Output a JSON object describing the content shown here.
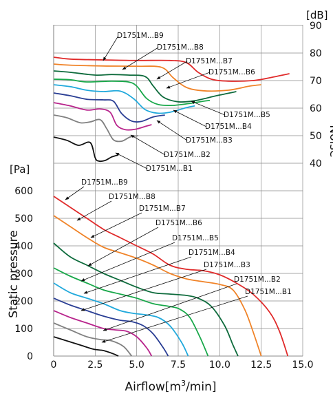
{
  "chart_data": {
    "type": "line",
    "x_axis": {
      "title": "Airflow[m³/min]",
      "title_main": "Airflow[m",
      "title_sup": "3",
      "title_end": "/min]",
      "range": [
        0,
        15
      ],
      "ticks": [
        "0",
        "2.5",
        "5.0",
        "7.5",
        "10.0",
        "12.5",
        "15.0"
      ]
    },
    "pressure_axis": {
      "title": "Static pressure",
      "unit": "[Pa]",
      "range": [
        0,
        600
      ],
      "ticks": [
        "0",
        "100",
        "200",
        "300",
        "400",
        "500",
        "600"
      ]
    },
    "noise_axis": {
      "title": "Noise",
      "unit": "[dB]",
      "range": [
        40,
        90
      ],
      "ticks": [
        "40",
        "50",
        "60",
        "70",
        "80",
        "90"
      ]
    },
    "grid": true,
    "pressure_curves": [
      {
        "name": "D1751M...B9",
        "color": "#e02a2a",
        "points": [
          [
            0,
            580
          ],
          [
            1,
            540
          ],
          [
            2,
            500
          ],
          [
            3,
            460
          ],
          [
            4,
            430
          ],
          [
            5,
            400
          ],
          [
            6,
            370
          ],
          [
            7,
            330
          ],
          [
            8,
            315
          ],
          [
            9,
            310
          ],
          [
            10,
            295
          ],
          [
            11,
            265
          ],
          [
            12,
            225
          ],
          [
            13,
            160
          ],
          [
            13.6,
            90
          ],
          [
            14.1,
            0
          ]
        ]
      },
      {
        "name": "D1751M...B8",
        "color": "#f08328",
        "points": [
          [
            0,
            510
          ],
          [
            1,
            470
          ],
          [
            2,
            430
          ],
          [
            3,
            395
          ],
          [
            4,
            375
          ],
          [
            5,
            355
          ],
          [
            6,
            330
          ],
          [
            7,
            300
          ],
          [
            8,
            280
          ],
          [
            9,
            270
          ],
          [
            10,
            260
          ],
          [
            10.8,
            240
          ],
          [
            11.5,
            170
          ],
          [
            12,
            90
          ],
          [
            12.5,
            0
          ]
        ]
      },
      {
        "name": "D1751M...B7",
        "color": "#0e6b3c",
        "points": [
          [
            0,
            410
          ],
          [
            1,
            360
          ],
          [
            2,
            330
          ],
          [
            3,
            300
          ],
          [
            4,
            275
          ],
          [
            5,
            250
          ],
          [
            6,
            230
          ],
          [
            7,
            225
          ],
          [
            8,
            220
          ],
          [
            8.7,
            210
          ],
          [
            9.5,
            180
          ],
          [
            10.3,
            110
          ],
          [
            10.8,
            40
          ],
          [
            11.1,
            0
          ]
        ]
      },
      {
        "name": "D1751M...B6",
        "color": "#19a84a",
        "points": [
          [
            0,
            320
          ],
          [
            1,
            290
          ],
          [
            2,
            265
          ],
          [
            3,
            240
          ],
          [
            4,
            225
          ],
          [
            5,
            210
          ],
          [
            6,
            190
          ],
          [
            7,
            180
          ],
          [
            7.6,
            170
          ],
          [
            8.2,
            140
          ],
          [
            8.8,
            70
          ],
          [
            9.3,
            0
          ]
        ]
      },
      {
        "name": "D1751M...B5",
        "color": "#21a9dc",
        "points": [
          [
            0,
            265
          ],
          [
            1,
            230
          ],
          [
            2,
            210
          ],
          [
            3,
            190
          ],
          [
            4,
            165
          ],
          [
            4.8,
            155
          ],
          [
            5.5,
            150
          ],
          [
            6.3,
            140
          ],
          [
            7,
            110
          ],
          [
            7.7,
            50
          ],
          [
            8.1,
            0
          ]
        ]
      },
      {
        "name": "D1751M...B4",
        "color": "#2a3e94",
        "points": [
          [
            0,
            210
          ],
          [
            1,
            185
          ],
          [
            2,
            165
          ],
          [
            3,
            145
          ],
          [
            4,
            130
          ],
          [
            4.7,
            125
          ],
          [
            5.4,
            110
          ],
          [
            6,
            80
          ],
          [
            6.6,
            30
          ],
          [
            6.9,
            0
          ]
        ]
      },
      {
        "name": "D1751M...B3",
        "color": "#b8248c",
        "points": [
          [
            0,
            165
          ],
          [
            1,
            140
          ],
          [
            2,
            120
          ],
          [
            3,
            100
          ],
          [
            3.7,
            95
          ],
          [
            4.4,
            90
          ],
          [
            5,
            70
          ],
          [
            5.6,
            30
          ],
          [
            5.9,
            0
          ]
        ]
      },
      {
        "name": "D1751M...B2",
        "color": "#808080",
        "points": [
          [
            0,
            120
          ],
          [
            1,
            95
          ],
          [
            2,
            70
          ],
          [
            2.8,
            60
          ],
          [
            3.5,
            55
          ],
          [
            4.2,
            35
          ],
          [
            4.7,
            0
          ]
        ]
      },
      {
        "name": "D1751M...B1",
        "color": "#111111",
        "points": [
          [
            0,
            70
          ],
          [
            0.8,
            55
          ],
          [
            1.6,
            40
          ],
          [
            2.4,
            25
          ],
          [
            3,
            20
          ],
          [
            3.6,
            8
          ],
          [
            3.9,
            0
          ]
        ]
      }
    ],
    "noise_curves": [
      {
        "name": "D1751M...B9",
        "color": "#e02a2a",
        "points": [
          [
            0,
            78.5
          ],
          [
            1,
            77.8
          ],
          [
            3,
            77.5
          ],
          [
            5,
            77.3
          ],
          [
            7,
            77.3
          ],
          [
            8,
            76.5
          ],
          [
            8.7,
            73
          ],
          [
            9.5,
            70.5
          ],
          [
            10.5,
            69.8
          ],
          [
            12,
            70
          ],
          [
            13,
            71
          ],
          [
            14.2,
            72.5
          ]
        ]
      },
      {
        "name": "D1751M...B8",
        "color": "#f08328",
        "points": [
          [
            0,
            76
          ],
          [
            1,
            75.6
          ],
          [
            3,
            75.3
          ],
          [
            5,
            75.2
          ],
          [
            6.5,
            74.8
          ],
          [
            7.2,
            71
          ],
          [
            8,
            67.5
          ],
          [
            9,
            66.3
          ],
          [
            10.5,
            66.5
          ],
          [
            11.8,
            68
          ],
          [
            12.5,
            68.5
          ]
        ]
      },
      {
        "name": "D1751M...B7",
        "color": "#0e6b3c",
        "points": [
          [
            0,
            73.5
          ],
          [
            1,
            73
          ],
          [
            2.5,
            72
          ],
          [
            3.5,
            72.2
          ],
          [
            4.5,
            72
          ],
          [
            5.5,
            71.5
          ],
          [
            6,
            68
          ],
          [
            6.6,
            64
          ],
          [
            7.5,
            62.3
          ],
          [
            8.5,
            62.7
          ],
          [
            9.8,
            64.5
          ],
          [
            11,
            66
          ]
        ]
      },
      {
        "name": "D1751M...B6",
        "color": "#19a84a",
        "points": [
          [
            0,
            70.5
          ],
          [
            1,
            70.3
          ],
          [
            2,
            69.5
          ],
          [
            3.5,
            69.8
          ],
          [
            4.5,
            69.5
          ],
          [
            5,
            68
          ],
          [
            5.6,
            63.5
          ],
          [
            6.3,
            61.3
          ],
          [
            7.2,
            61
          ],
          [
            8.3,
            61.8
          ],
          [
            9,
            62.5
          ],
          [
            9.4,
            62.8
          ]
        ]
      },
      {
        "name": "D1751M...B5",
        "color": "#21a9dc",
        "points": [
          [
            0,
            68.5
          ],
          [
            1,
            67.8
          ],
          [
            2,
            66.5
          ],
          [
            3,
            66
          ],
          [
            4,
            66.2
          ],
          [
            4.8,
            63.5
          ],
          [
            5.5,
            59.5
          ],
          [
            6.2,
            58.2
          ],
          [
            7,
            58.5
          ],
          [
            8,
            60.2
          ],
          [
            8.5,
            60.8
          ]
        ]
      },
      {
        "name": "D1751M...B4",
        "color": "#2a3e94",
        "points": [
          [
            0,
            65.5
          ],
          [
            1,
            64.5
          ],
          [
            2,
            63.2
          ],
          [
            3,
            63
          ],
          [
            3.6,
            62.5
          ],
          [
            4.1,
            58
          ],
          [
            4.7,
            55.3
          ],
          [
            5.3,
            55.2
          ],
          [
            6,
            56.8
          ],
          [
            6.7,
            57.5
          ]
        ]
      },
      {
        "name": "D1751M...B3",
        "color": "#b8248c",
        "points": [
          [
            0,
            62
          ],
          [
            1,
            60.8
          ],
          [
            2,
            59.3
          ],
          [
            2.8,
            59.7
          ],
          [
            3.4,
            58.5
          ],
          [
            3.8,
            53.8
          ],
          [
            4.3,
            52.2
          ],
          [
            4.9,
            52.3
          ],
          [
            5.6,
            53.5
          ],
          [
            5.9,
            54
          ]
        ]
      },
      {
        "name": "D1751M...B2",
        "color": "#808080",
        "points": [
          [
            0,
            57.5
          ],
          [
            0.8,
            56.5
          ],
          [
            1.6,
            54.7
          ],
          [
            2.2,
            55
          ],
          [
            2.8,
            55.8
          ],
          [
            3.2,
            52.5
          ],
          [
            3.6,
            48.5
          ],
          [
            4.1,
            48
          ],
          [
            4.6,
            49.5
          ],
          [
            5.1,
            50
          ]
        ]
      },
      {
        "name": "D1751M...B1",
        "color": "#111111",
        "points": [
          [
            0,
            49.5
          ],
          [
            0.8,
            48.3
          ],
          [
            1.5,
            46.5
          ],
          [
            2.2,
            47.5
          ],
          [
            2.5,
            42
          ],
          [
            2.7,
            40.8
          ],
          [
            3.1,
            41
          ],
          [
            3.5,
            42.3
          ],
          [
            3.9,
            43
          ]
        ]
      }
    ],
    "pressure_labels": [
      "D1751M...B9",
      "D1751M...B8",
      "D1751M...B7",
      "D1751M...B6",
      "D1751M...B5",
      "D1751M...B4",
      "D1751M...B3",
      "D1751M...B2",
      "D1751M...B1"
    ],
    "noise_labels": [
      "D1751M...B9",
      "D1751M...B8",
      "D1751M...B7",
      "D1751M...B6",
      "D1751M...B5",
      "D1751M...B4",
      "D1751M...B3",
      "D1751M...B2",
      "D1751M...B1"
    ]
  }
}
